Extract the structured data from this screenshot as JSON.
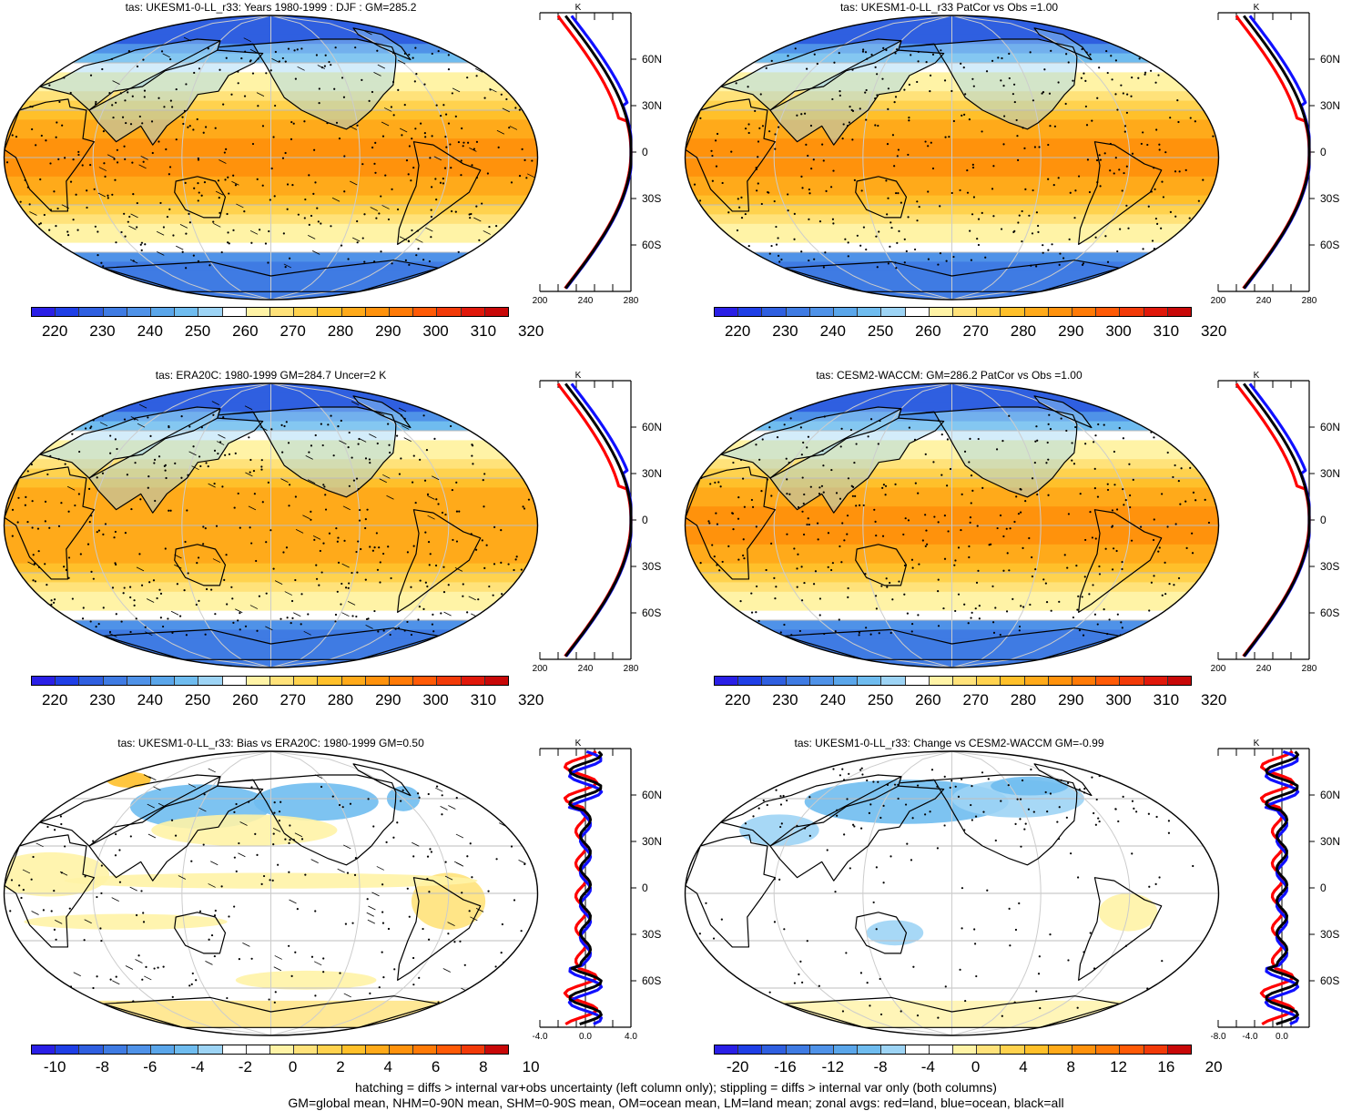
{
  "panels": [
    {
      "id": "p1",
      "title": "tas: UKESM1-0-LL_r33: Years 1980-1999 : DJF : GM=285.2",
      "type": "abs",
      "variant": 1,
      "hatch": true
    },
    {
      "id": "p2",
      "title": "tas: UKESM1-0-LL_r33 PatCor vs Obs =1.00",
      "type": "abs",
      "variant": 2,
      "hatch": false
    },
    {
      "id": "p3",
      "title": "tas: ERA20C: 1980-1999 GM=284.7 Uncer=2 K",
      "type": "abs",
      "variant": 3,
      "hatch": true
    },
    {
      "id": "p4",
      "title": "tas: CESM2-WACCM: GM=286.2 PatCor vs Obs =1.00",
      "type": "abs",
      "variant": 4,
      "hatch": false
    },
    {
      "id": "p5",
      "title": "tas: UKESM1-0-LL_r33: Bias vs ERA20C: 1980-1999 GM=0.50",
      "type": "bias",
      "variant": 5,
      "hatch": true
    },
    {
      "id": "p6",
      "title": "tas: UKESM1-0-LL_r33: Change vs CESM2-WACCM GM=-0.99",
      "type": "change",
      "variant": 6,
      "hatch": false
    }
  ],
  "colorbars": {
    "abs": {
      "colors": [
        "#2a1fe6",
        "#1f3fe6",
        "#2f5fe0",
        "#3f7be3",
        "#4f92e8",
        "#5aa6ea",
        "#6fbcef",
        "#9dd4f5",
        "#ffffff",
        "#fff3a6",
        "#ffe27a",
        "#ffd24e",
        "#ffc02a",
        "#ffaa1a",
        "#ff920c",
        "#ff7a06",
        "#ff5a06",
        "#f23a08",
        "#e0180a",
        "#c80808"
      ],
      "labels": [
        "220",
        "230",
        "240",
        "250",
        "260",
        "270",
        "280",
        "290",
        "300",
        "310",
        "320"
      ]
    },
    "bias": {
      "colors": [
        "#2a1fe6",
        "#1f3fe6",
        "#2f5fe0",
        "#3f7be3",
        "#4f92e8",
        "#5aa6ea",
        "#6fbcef",
        "#9dd4f5",
        "#ffffff",
        "#ffffff",
        "#fff3a6",
        "#ffe27a",
        "#ffd24e",
        "#ffc02a",
        "#ffaa1a",
        "#ff920c",
        "#ff7a06",
        "#ff5a06",
        "#f23a08",
        "#c80808"
      ],
      "labels": [
        "-10",
        "-8",
        "-6",
        "-4",
        "-2",
        "0",
        "2",
        "4",
        "6",
        "8",
        "10"
      ]
    },
    "change": {
      "colors": [
        "#2a1fe6",
        "#1f3fe6",
        "#2f5fe0",
        "#3f7be3",
        "#4f92e8",
        "#5aa6ea",
        "#6fbcef",
        "#9dd4f5",
        "#ffffff",
        "#ffffff",
        "#fff3a6",
        "#ffe27a",
        "#ffd24e",
        "#ffc02a",
        "#ffaa1a",
        "#ff920c",
        "#ff7a06",
        "#ff5a06",
        "#f23a08",
        "#c80808"
      ],
      "labels": [
        "-20",
        "-16",
        "-12",
        "-8",
        "-4",
        "0",
        "4",
        "8",
        "12",
        "16",
        "20"
      ]
    }
  },
  "zonal_axes": {
    "unit": "K",
    "lat_labels": [
      "60N",
      "30N",
      "0",
      "30S",
      "60S"
    ],
    "abs_x_labels": [
      "200",
      "240",
      "280"
    ],
    "bias_x_labels": [
      "-4.0",
      "0.0",
      "4.0"
    ],
    "change_x_labels": [
      "-8.0",
      "-4.0",
      "0.0"
    ]
  },
  "legend_colors": {
    "land": "#ff0000",
    "ocean": "#1010ff",
    "all": "#000000"
  },
  "footer": {
    "line1": "hatching = diffs > internal var+obs uncertainty (left column only); stippling = diffs > internal var only (both columns)",
    "line2": "GM=global mean, NHM=0-90N mean, SHM=0-90S mean, OM=ocean mean, LM=land mean; zonal avgs: red=land, blue=ocean, black=all"
  }
}
